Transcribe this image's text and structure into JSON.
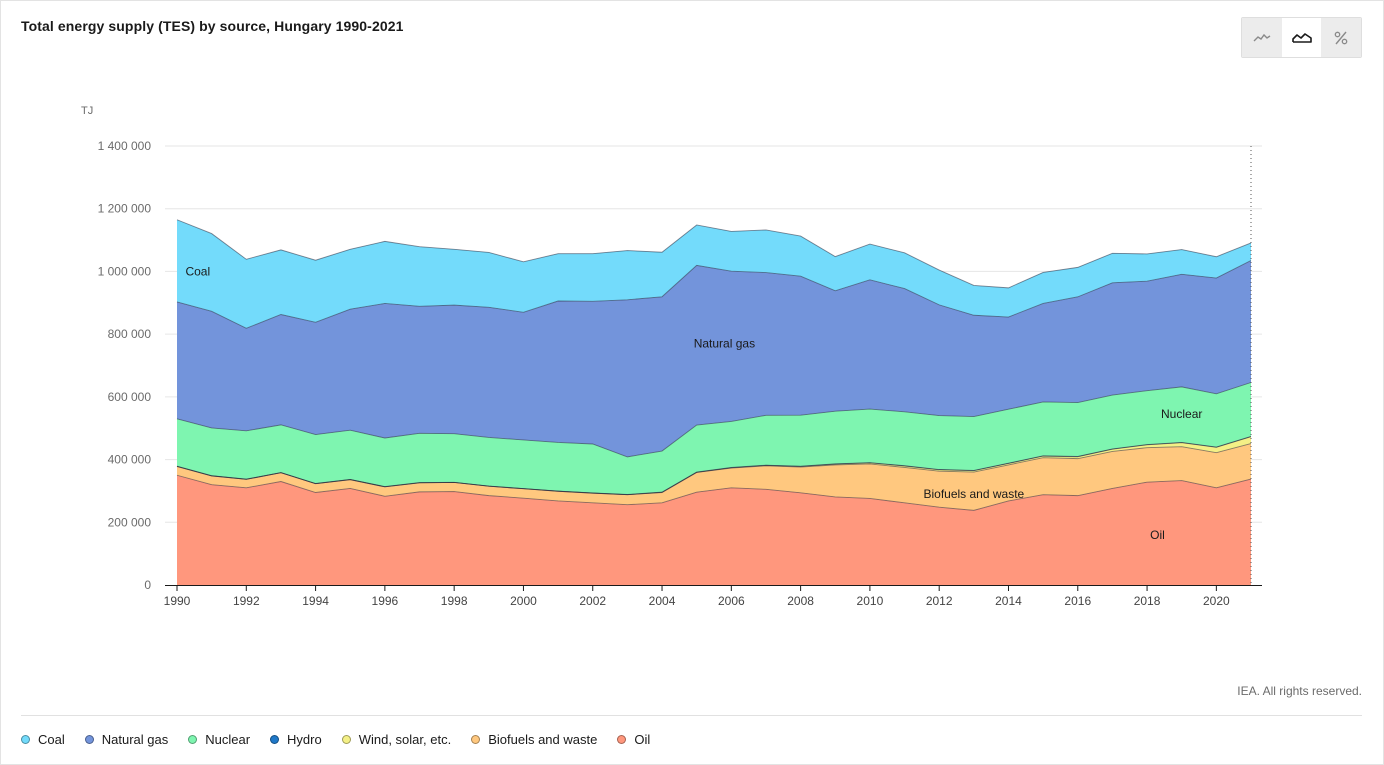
{
  "header": {
    "title": "Total energy supply (TES) by source, Hungary 1990-2021"
  },
  "view_toggle": {
    "options": [
      {
        "name": "line-view-icon",
        "active": false
      },
      {
        "name": "area-view-icon",
        "active": true
      },
      {
        "name": "percent-view-icon",
        "active": false
      }
    ]
  },
  "footer": {
    "copyright": "IEA. All rights reserved."
  },
  "chart_data": {
    "type": "area",
    "stacked": true,
    "title": "Total energy supply (TES) by source, Hungary 1990-2021",
    "unit_label": "TJ",
    "xlabel": "",
    "ylabel": "TJ",
    "ylim": [
      0,
      1400000
    ],
    "yticks": [
      0,
      200000,
      400000,
      600000,
      800000,
      1000000,
      1200000,
      1400000
    ],
    "ytick_labels": [
      "0",
      "200 000",
      "400 000",
      "600 000",
      "800 000",
      "1 000 000",
      "1 200 000",
      "1 400 000"
    ],
    "xlim": [
      1990,
      2021
    ],
    "xticks": [
      1990,
      1992,
      1994,
      1996,
      1998,
      2000,
      2002,
      2004,
      2006,
      2008,
      2010,
      2012,
      2014,
      2016,
      2018,
      2020
    ],
    "grid": true,
    "legend_position": "bottom",
    "x": [
      1990,
      1991,
      1992,
      1993,
      1994,
      1995,
      1996,
      1997,
      1998,
      1999,
      2000,
      2001,
      2002,
      2003,
      2004,
      2005,
      2006,
      2007,
      2008,
      2009,
      2010,
      2011,
      2012,
      2013,
      2014,
      2015,
      2016,
      2017,
      2018,
      2019,
      2020,
      2021
    ],
    "series": [
      {
        "name": "Oil",
        "color": "#ff977d",
        "values": [
          350000,
          320000,
          310000,
          330000,
          295000,
          308000,
          283000,
          297000,
          298000,
          285000,
          277000,
          268000,
          262000,
          256000,
          262000,
          296000,
          310000,
          305000,
          294000,
          281000,
          276000,
          262000,
          248000,
          238000,
          268000,
          288000,
          285000,
          308000,
          328000,
          333000,
          310000,
          338000
        ]
      },
      {
        "name": "Biofuels and waste",
        "color": "#ffc87f",
        "values": [
          28000,
          28000,
          27000,
          28000,
          28000,
          28000,
          30000,
          29000,
          29000,
          30000,
          30000,
          31000,
          31000,
          32000,
          33000,
          63000,
          63000,
          75000,
          82000,
          102000,
          110000,
          113000,
          115000,
          122000,
          115000,
          118000,
          118000,
          118000,
          110000,
          108000,
          112000,
          113000
        ]
      },
      {
        "name": "Wind, solar, etc.",
        "color": "#f4f086",
        "values": [
          0,
          0,
          0,
          0,
          0,
          0,
          0,
          0,
          0,
          0,
          0,
          0,
          0,
          0,
          500,
          500,
          1000,
          1500,
          2000,
          2500,
          3500,
          4500,
          4500,
          4500,
          4500,
          5000,
          6000,
          7000,
          9000,
          13000,
          17000,
          22000
        ]
      },
      {
        "name": "Hydro",
        "color": "#1f78c8",
        "values": [
          800,
          700,
          650,
          650,
          700,
          600,
          800,
          800,
          550,
          600,
          600,
          650,
          650,
          600,
          700,
          700,
          700,
          750,
          700,
          800,
          650,
          800,
          800,
          750,
          1100,
          850,
          900,
          800,
          800,
          800,
          850,
          800
        ]
      },
      {
        "name": "Nuclear",
        "color": "#7ef5b0",
        "values": [
          151000,
          152000,
          154000,
          152000,
          156000,
          157000,
          155000,
          157000,
          155000,
          155000,
          155000,
          155000,
          156000,
          120000,
          131000,
          150000,
          147000,
          159000,
          163000,
          168000,
          171000,
          172000,
          172000,
          172000,
          172000,
          172000,
          172000,
          172000,
          172000,
          177000,
          170000,
          172000
        ]
      },
      {
        "name": "Natural gas",
        "color": "#7394db",
        "values": [
          373000,
          372000,
          327000,
          352000,
          358000,
          386000,
          429000,
          405000,
          410000,
          415000,
          407000,
          451000,
          455000,
          501000,
          492000,
          509000,
          479000,
          455000,
          443000,
          384000,
          412000,
          393000,
          353000,
          323000,
          294000,
          314000,
          337000,
          358000,
          349000,
          359000,
          369000,
          389000
        ]
      },
      {
        "name": "Coal",
        "color": "#73dbfb",
        "values": [
          262000,
          248000,
          220000,
          206000,
          198000,
          191000,
          198000,
          190000,
          178000,
          175000,
          161000,
          151000,
          152000,
          157000,
          142000,
          129000,
          127000,
          136000,
          128000,
          109000,
          114000,
          114000,
          111000,
          95000,
          93000,
          99000,
          94000,
          94000,
          87000,
          79000,
          68000,
          56000
        ]
      }
    ],
    "annotations": [
      {
        "series": "Coal",
        "label": "Coal",
        "year": 1990.6,
        "value": 1000000
      },
      {
        "series": "Natural gas",
        "label": "Natural gas",
        "year": 2005.8,
        "value": 770000
      },
      {
        "series": "Nuclear",
        "label": "Nuclear",
        "year": 2019.0,
        "value": 545000
      },
      {
        "series": "Biofuels and waste",
        "label": "Biofuels and waste",
        "year": 2013.0,
        "value": 290000
      },
      {
        "series": "Oil",
        "label": "Oil",
        "year": 2018.3,
        "value": 160000
      }
    ],
    "legend_order": [
      "Coal",
      "Natural gas",
      "Nuclear",
      "Hydro",
      "Wind, solar, etc.",
      "Biofuels and waste",
      "Oil"
    ]
  }
}
